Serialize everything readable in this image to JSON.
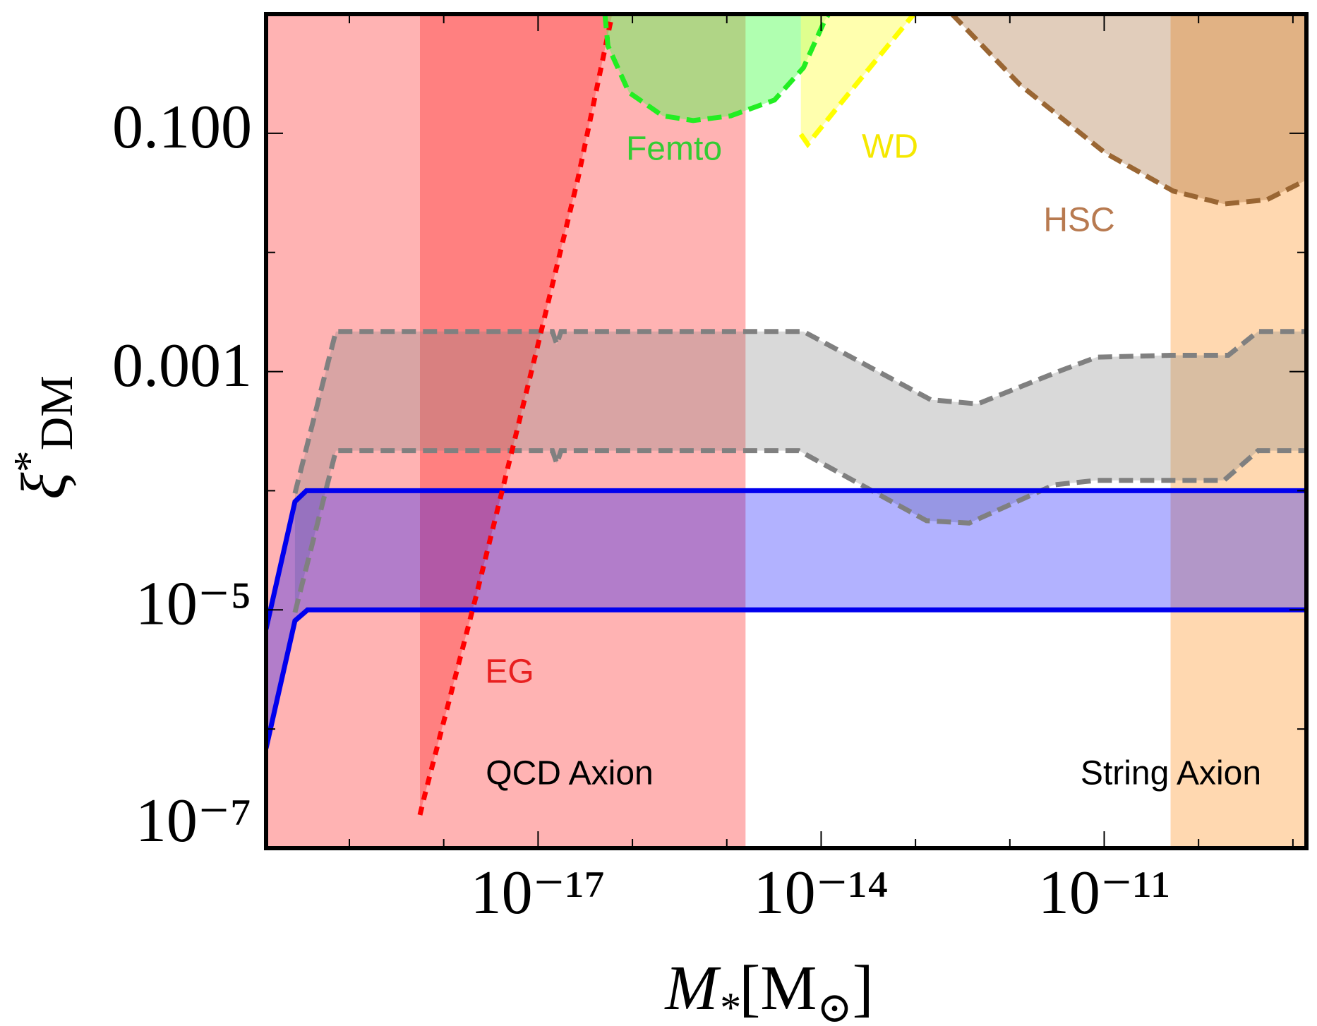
{
  "chart_data": {
    "type": "area",
    "xscale": "log",
    "yscale": "log",
    "xlim": [
      1.31e-20,
      1.39e-09
    ],
    "ylim": [
      1e-07,
      1
    ],
    "xticks": [
      {
        "value": 1e-17,
        "label": "10⁻¹⁷"
      },
      {
        "value": 1e-14,
        "label": "10⁻¹⁴"
      },
      {
        "value": 1e-11,
        "label": "10⁻¹¹"
      }
    ],
    "xticks_minor": [
      1e-19,
      1e-18,
      1e-16,
      1e-15,
      1e-13,
      1e-12,
      1e-10,
      1e-09
    ],
    "yticks": [
      {
        "value": 1e-07,
        "label": "10⁻⁷"
      },
      {
        "value": 1e-05,
        "label": "10⁻⁵"
      },
      {
        "value": 0.001,
        "label": "0.001"
      },
      {
        "value": 0.1,
        "label": "0.100"
      }
    ],
    "yticks_minor": [
      1e-06,
      0.0001,
      0.01
    ],
    "xlabel": {
      "base": "M",
      "sub": "*",
      "open": "[M",
      "sub2": "⊙",
      "close": "]"
    },
    "ylabel": {
      "base": "ξ",
      "sup": "*",
      "sub": "DM"
    },
    "bands": [
      {
        "x": [
          1.31e-20,
          1.58e-15
        ],
        "color": "#ffb3b3"
      },
      {
        "x": [
          5.05e-11,
          1.39e-09
        ],
        "color": "#ffd8b0"
      }
    ],
    "regions": [
      {
        "x": [
          5.6e-19,
          6.3e-19,
          2.2e-18,
          4.1e-18,
          1e-17,
          2.65e-17,
          6.1e-17
        ],
        "y": [
          1.9e-07,
          2.8e-07,
          1.3e-05,
          9.5e-05,
          0.0017,
          0.042,
          1
        ],
        "fill": "#ff8080",
        "color": "#ff0000",
        "dash": "12 10"
      },
      {
        "x": [
          5.1e-17,
          5.5e-17,
          9.2e-17,
          2.1e-16,
          4.4e-16,
          1.1e-15,
          3.2e-15,
          6.5e-15,
          1.09e-14,
          1.2e-14
        ],
        "y": [
          1,
          0.54,
          0.22,
          0.14,
          0.128,
          0.14,
          0.19,
          0.355,
          0.88,
          1
        ],
        "fill": "rgba(80,255,80,0.45)",
        "color": "#22ee22",
        "dash": "20 10"
      },
      {
        "x": [
          6.1e-15,
          7.2e-15,
          2e-14,
          9.6e-14
        ],
        "y": [
          0.098,
          0.081,
          0.22,
          1
        ],
        "fill": "rgba(255,255,120,0.6)",
        "color": "#ffff00",
        "dash": "20 10"
      },
      {
        "x": [
          2.44e-13,
          1.28e-12,
          1.02e-11,
          5.4e-11,
          1.86e-10,
          5.3e-10,
          1.39e-09
        ],
        "y": [
          1,
          0.255,
          0.0685,
          0.0327,
          0.0255,
          0.0277,
          0.0405
        ],
        "fill": "rgba(155,90,30,0.3)",
        "color": "#9a6633",
        "dash": "20 10"
      }
    ],
    "ranges": [
      {
        "fill": "rgba(128,128,128,0.3)",
        "color": "#808080",
        "dash": "20 10",
        "upper": {
          "x": [
            2.65e-20,
            7.2e-20,
            1.42e-17,
            1.58e-17,
            1.75e-17,
            6.5e-15,
            1.45e-13,
            4.55e-13,
            3.6e-12,
            8.3e-12,
            5.05e-11,
            2.07e-10,
            4.27e-10,
            1.39e-09
          ],
          "y": [
            9.5e-05,
            0.00217,
            0.00217,
            0.00169,
            0.00217,
            0.00217,
            0.00058,
            0.000535,
            0.00103,
            0.00132,
            0.00137,
            0.00137,
            0.00217,
            0.00217
          ]
        },
        "lower": {
          "x": [
            2.65e-20,
            7.2e-20,
            1.42e-17,
            1.58e-17,
            1.75e-17,
            5.8e-15,
            1.31e-13,
            3.7e-13,
            2.94e-12,
            8.3e-12,
            5.4e-11,
            1.86e-10,
            4.27e-10,
            1.39e-09
          ],
          "y": [
            9.5e-06,
            0.000217,
            0.000217,
            0.000169,
            0.000217,
            0.000217,
            5.6e-05,
            5.35e-05,
            0.000112,
            0.000122,
            0.000122,
            0.000122,
            0.000217,
            0.000217
          ]
        }
      },
      {
        "fill": "rgba(0,0,255,0.3)",
        "color": "#0000ee",
        "dash": "none",
        "upper": {
          "x": [
            1.31e-20,
            2.65e-20,
            3.5e-20,
            1.39e-09
          ],
          "y": [
            6.9e-06,
            8.1e-05,
            0.0001,
            0.0001
          ]
        },
        "lower": {
          "x": [
            1.31e-20,
            2.65e-20,
            3.6e-20,
            1.39e-09
          ],
          "y": [
            6.9e-07,
            8.1e-06,
            1e-05,
            1e-05
          ]
        }
      }
    ],
    "annotations": [
      {
        "text": "Femto",
        "color": "#33cc33"
      },
      {
        "text": "WD",
        "color": "#f5e800"
      },
      {
        "text": "HSC",
        "color": "#b87a50"
      },
      {
        "text": "EG",
        "color": "#e82020"
      },
      {
        "text": "QCD Axion",
        "color": "#000000"
      },
      {
        "text": "String Axion",
        "color": "#000000"
      }
    ]
  }
}
